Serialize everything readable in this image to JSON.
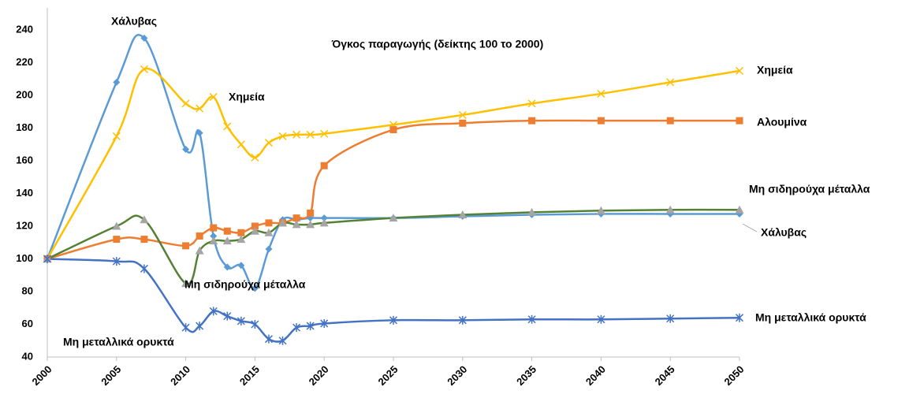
{
  "chart_data": {
    "type": "line",
    "title": "Όγκος παραγωγής (δείκτης 100 το 2000)",
    "x": [
      2000,
      2005,
      2007,
      2010,
      2011,
      2012,
      2013,
      2014,
      2015,
      2016,
      2017,
      2018,
      2019,
      2020,
      2025,
      2030,
      2035,
      2040,
      2045,
      2050
    ],
    "xlim": [
      2000,
      2050
    ],
    "xticks": [
      2000,
      2005,
      2010,
      2015,
      2020,
      2025,
      2030,
      2035,
      2040,
      2045,
      2050
    ],
    "ylim": [
      40,
      240
    ],
    "yticks": [
      40,
      60,
      80,
      100,
      120,
      140,
      160,
      180,
      200,
      220,
      240
    ],
    "grid": false,
    "smooth": true,
    "series": [
      {
        "name": "Χάλυβας",
        "color": "#5b9bd5",
        "marker_color": "#5b9bd5",
        "marker": "diamond",
        "values": [
          100,
          208,
          235,
          167,
          177,
          114,
          95,
          96,
          82,
          106,
          124,
          124,
          125,
          125,
          125,
          126,
          127,
          127.5,
          127.5,
          127.5
        ]
      },
      {
        "name": "Χημεία",
        "color": "#ffc000",
        "marker_color": "#ffc000",
        "marker": "x",
        "values": [
          100,
          175,
          216,
          195,
          192,
          199,
          181,
          170,
          162,
          171,
          175,
          176,
          176,
          176.5,
          182,
          188,
          195,
          201,
          208,
          215
        ]
      },
      {
        "name": "Αλουμίνα",
        "color": "#ed7d31",
        "marker_color": "#ed7d31",
        "marker": "square",
        "values": [
          100,
          112,
          112,
          108,
          114,
          119,
          117,
          116,
          120,
          122,
          122,
          125,
          128,
          157,
          179,
          183,
          184.5,
          184.5,
          184.5,
          184.5
        ]
      },
      {
        "name": "Μη σιδηρούχα μέταλλα",
        "color": "#548235",
        "marker_color": "#a5a5a5",
        "marker": "triangle",
        "values": [
          100,
          120,
          124,
          85,
          105,
          111,
          111,
          112,
          117,
          116,
          122,
          121,
          121,
          122,
          125,
          127,
          128.5,
          129.5,
          130,
          130
        ]
      },
      {
        "name": "Μη μεταλλικά ορυκτά",
        "color": "#4472c4",
        "marker_color": "#4472c4",
        "marker": "asterisk",
        "values": [
          100,
          98.5,
          94,
          58,
          59,
          68,
          65,
          62,
          60,
          51,
          50,
          58,
          59,
          60.5,
          62.5,
          62.5,
          63,
          63,
          63.5,
          64
        ]
      }
    ]
  }
}
